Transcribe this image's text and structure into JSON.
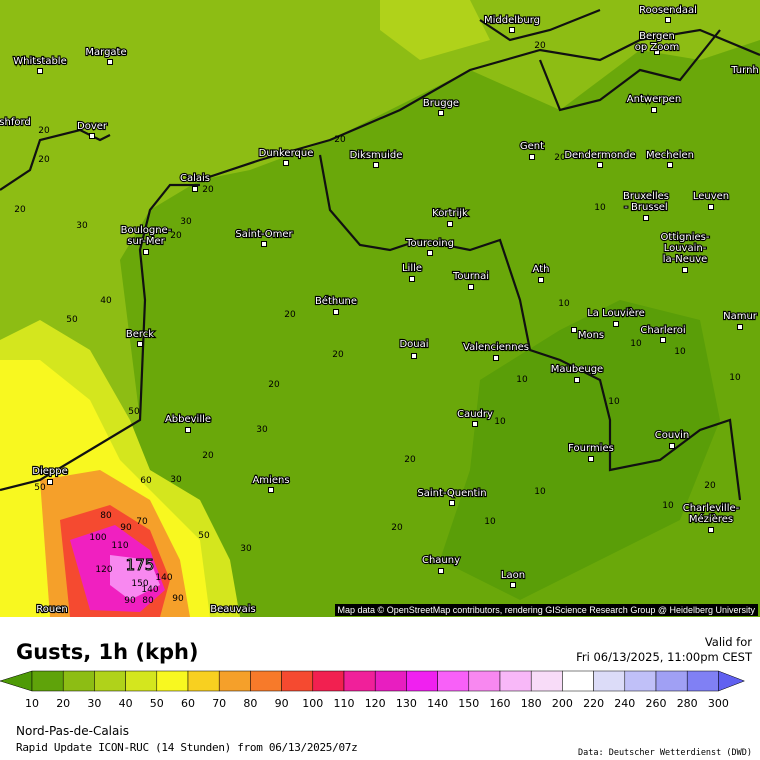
{
  "map": {
    "attribution": "Map data © OpenStreetMap contributors, rendering GIScience Research Group @ Heidelberg University",
    "cities": [
      "Middelburg",
      "Roosendaal",
      "Bergen",
      "op Zoom",
      "Turnh",
      "Whitstable",
      "Margate",
      "shford",
      "Dover",
      "Brugge",
      "Antwerpen",
      "Gent",
      "Dendermonde",
      "Mechelen",
      "Diksmuide",
      "Dunkerque",
      "Calais",
      "Kortrijk",
      "Bruxelles",
      "- Brussel",
      "Leuven",
      "Boulogne-",
      "sur-Mer",
      "Saint-Omer",
      "Tourcoing",
      "Lille",
      "Tournai",
      "Ath",
      "Ottignies-",
      "Louvain-",
      "la-Neuve",
      "Béthune",
      "La Louvière",
      "Mons",
      "Charleroi",
      "Namur",
      "Berck",
      "Douai",
      "Valenciennes",
      "Maubeuge",
      "Caudry",
      "Abbeville",
      "Fourmies",
      "Couvin",
      "Dieppe",
      "Amiens",
      "Saint-Quentin",
      "Charleville-",
      "Mézières",
      "Chauny",
      "Laon",
      "Rouen",
      "Beauvais"
    ],
    "contour_labels": [
      "20",
      "20",
      "20",
      "20",
      "20",
      "30",
      "20",
      "30",
      "40",
      "50",
      "20",
      "20",
      "20",
      "20",
      "30",
      "20",
      "50",
      "60",
      "30",
      "50",
      "80",
      "70",
      "90",
      "100",
      "110",
      "120",
      "175",
      "150",
      "140",
      "140",
      "90",
      "80",
      "90",
      "50",
      "30",
      "20",
      "10",
      "10",
      "10",
      "10",
      "10",
      "10",
      "10",
      "10",
      "10",
      "20",
      "20",
      "10",
      "20",
      "10"
    ]
  },
  "header": {
    "title": "Gusts, 1h (kph)",
    "valid_label": "Valid for",
    "valid_time": "Fri 06/13/2025, 11:00pm CEST"
  },
  "legend": {
    "ticks": [
      "10",
      "20",
      "30",
      "40",
      "50",
      "60",
      "70",
      "80",
      "90",
      "100",
      "110",
      "120",
      "130",
      "140",
      "150",
      "160",
      "180",
      "200",
      "220",
      "240",
      "260",
      "280",
      "300"
    ],
    "colors": [
      "#5fa30a",
      "#8dbd14",
      "#b0d21a",
      "#d4e61e",
      "#f8f820",
      "#f8d020",
      "#f5a02a",
      "#f77a2a",
      "#f54a30",
      "#f22050",
      "#f0209a",
      "#e81ec0",
      "#f020f0",
      "#f860f8",
      "#f888f0",
      "#f8b8f8",
      "#f8dcf8",
      "#ffffff",
      "#dcdcf8",
      "#c0c0f8",
      "#a0a0f4",
      "#8080f4"
    ],
    "low_color": "#4e9a06",
    "high_color": "#6060f0"
  },
  "footer": {
    "region": "Nord-Pas-de-Calais",
    "model": "Rapid Update ICON-RUC (14 Stunden) from 06/13/2025/07z",
    "source": "Data: Deutscher Wetterdienst (DWD)"
  }
}
